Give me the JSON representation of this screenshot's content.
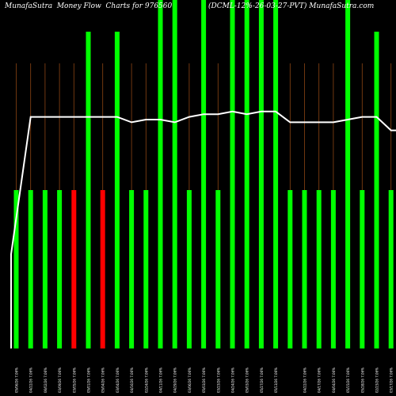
{
  "header": {
    "title_left": "MunafaSutra  Money Flow  Charts for 976560",
    "title_right": "(DCML-12%-26-03-27-PVT) MunafaSutra.com"
  },
  "chart_data": {
    "type": "bar",
    "title": "MunafaSutra  Money Flow  Charts for 976560 (DCML-12%-26-03-27-PVT) MunafaSutra.com",
    "categories": [
      "05/06/26 7.06%",
      "04/22/26 7.06%",
      "06/02/26 7.06%",
      "03/09/26 7.06%",
      "03/05/26 7.06%",
      "05/01/26 7.06%",
      "05/04/26 7.06%",
      "03/04/26 7.06%",
      "04/16/26 7.06%",
      "02/24/26 7.06%",
      "04/11/26 7.06%",
      "04/29/26 7.06%",
      "03/06/26 7.06%",
      "05/03/26 7.06%",
      "03/23/26 7.06%",
      "04/24/26 7.06%",
      "05/03/26 7.06%",
      "05/27/26 7.06%",
      "05/13/26 7.06%",
      "",
      "04/22/26 7.06%",
      "04/17/26 7.06%",
      "04/04/26 7.06%",
      "05/15/26 7.06%",
      "05/28/26 7.06%",
      "02/23/26 7.06%",
      "03/17/26 7.06%",
      "02/06/26 7.06%",
      "03/26/26 7.06%",
      "04/07/26 7.06%"
    ],
    "series": [
      {
        "values": [
          1,
          1,
          1,
          1,
          1,
          2,
          1,
          2,
          1,
          1,
          3,
          3,
          1,
          3,
          1,
          3,
          3,
          3,
          3,
          1,
          1,
          1,
          1,
          3,
          1,
          2,
          1,
          1,
          1,
          1
        ]
      },
      {
        "values": [
          0.35,
          0.86,
          0.86,
          0.86,
          0.86,
          0.86,
          0.86,
          0.86,
          0.84,
          0.85,
          0.85,
          0.84,
          0.86,
          0.87,
          0.87,
          0.88,
          0.87,
          0.88,
          0.88,
          0.84,
          0.84,
          0.84,
          0.84,
          0.85,
          0.86,
          0.86,
          0.81,
          0.81,
          0.81,
          0.84
        ]
      }
    ],
    "bar_colors": [
      "#00ff00",
      "#00ff00",
      "#00ff00",
      "#00ff00",
      "#ff0000",
      "#00ff00",
      "#ff0000",
      "#00ff00",
      "#00ff00",
      "#00ff00",
      "#00ff00",
      "#00ff00",
      "#00ff00",
      "#00ff00",
      "#00ff00",
      "#00ff00",
      "#00ff00",
      "#00ff00",
      "#00ff00",
      "#00ff00",
      "#00ff00",
      "#00ff00",
      "#00ff00",
      "#00ff00",
      "#00ff00",
      "#00ff00",
      "#00ff00",
      "#00ff00",
      "#00ff00",
      "#00ff00"
    ],
    "line_color": "#ffffff",
    "gridline_color": "#8b4513",
    "background": "#000000"
  }
}
